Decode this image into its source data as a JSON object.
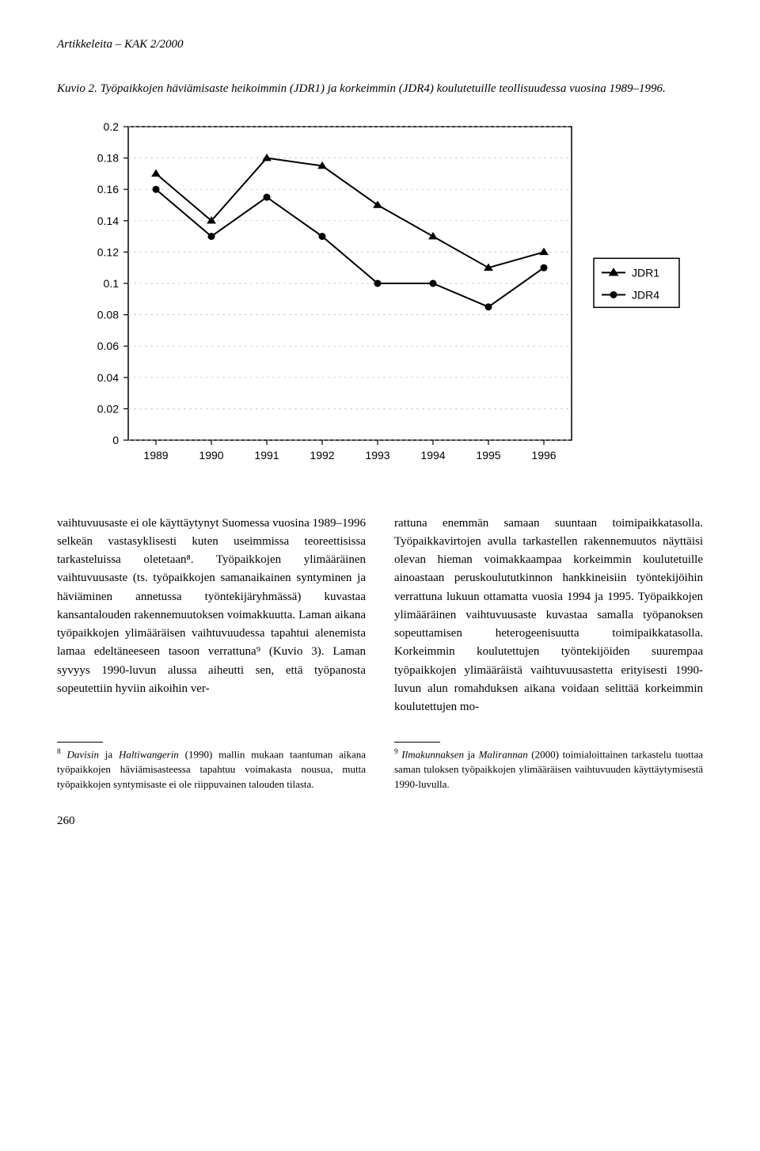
{
  "header": {
    "text": "Artikkeleita – KAK 2/2000"
  },
  "figure": {
    "caption_prefix": "Kuvio 2. ",
    "caption": "Työpaikkojen häviämisaste heikoimmin (JDR1) ja korkeimmin (JDR4) koulutetuille teollisuudessa vuosina 1989–1996."
  },
  "chart": {
    "type": "line",
    "background_color": "#ffffff",
    "grid_color": "#bfbfbf",
    "axis_color": "#000000",
    "tick_fontsize": 14,
    "x_categories": [
      "1989",
      "1990",
      "1991",
      "1992",
      "1993",
      "1994",
      "1995",
      "1996"
    ],
    "y": {
      "min": 0,
      "max": 0.2,
      "tick_step": 0.02,
      "tick_labels": [
        "0",
        "0.02",
        "0.04",
        "0.06",
        "0.08",
        "0.1",
        "0.12",
        "0.14",
        "0.16",
        "0.18",
        "0.2"
      ]
    },
    "series": [
      {
        "name": "JDR1",
        "marker": "triangle",
        "color": "#000000",
        "line_width": 2,
        "marker_size": 10,
        "values": [
          0.17,
          0.14,
          0.18,
          0.175,
          0.15,
          0.13,
          0.11,
          0.12
        ]
      },
      {
        "name": "JDR4",
        "marker": "circle",
        "color": "#000000",
        "line_width": 2,
        "marker_size": 9,
        "values": [
          0.16,
          0.13,
          0.155,
          0.13,
          0.1,
          0.1,
          0.085,
          0.11
        ]
      }
    ],
    "legend": {
      "position": "right",
      "border_color": "#000000",
      "items": [
        {
          "marker": "triangle",
          "label": "JDR1"
        },
        {
          "marker": "circle",
          "label": "JDR4"
        }
      ]
    }
  },
  "body": {
    "left": "vaihtuvuusaste ei ole käyttäytynyt Suomessa vuosina 1989–1996 selkeän vastasyklisesti kuten useimmissa teoreettisissa tarkasteluissa oletetaan⁸. Työpaikkojen ylimääräinen vaihtuvuusaste (ts. työpaikkojen samanaikainen syntyminen ja häviäminen annetussa työntekijäryhmässä) kuvastaa kansantalouden rakennemuutoksen voimakkuutta. Laman aikana työpaikkojen ylimääräisen vaihtuvuudessa tapahtui alenemista lamaa edeltäneeseen tasoon verrattuna⁹ (Kuvio 3). Laman syvyys 1990-luvun alussa aiheutti sen, että työpanosta sopeutettiin hyviin aikoihin ver-",
    "right": "rattuna enemmän samaan suuntaan toimipaikkatasolla. Työpaikkavirtojen avulla tarkastellen rakennemuutos näyttäisi olevan hieman voimakkaampaa korkeimmin koulutetuille ainoastaan peruskoulututkinnon hankkineisiin työntekijöihin verrattuna lukuun ottamatta vuosia 1994 ja 1995. Työpaikkojen ylimääräinen vaihtuvuusaste kuvastaa samalla työpanoksen sopeuttamisen heterogeenisuutta toimipaikkatasolla. Korkeimmin koulutettujen työntekijöiden suurempaa työpaikkojen ylimääräistä vaihtuvuusastetta erityisesti 1990-luvun alun romahduksen aikana voidaan selittää korkeimmin koulutettujen mo-"
  },
  "footnotes": {
    "left": {
      "num": "8",
      "italic1": "Davisin",
      "mid": " ja ",
      "italic2": "Haltiwangerin",
      "rest": " (1990) mallin mukaan taantuman aikana työpaikkojen häviämisasteessa tapahtuu voimakasta nousua, mutta työpaikkojen syntymisaste ei ole riippuvainen talouden tilasta."
    },
    "right": {
      "num": "9",
      "italic1": "Ilmakunnaksen",
      "mid": " ja ",
      "italic2": "Malirannan",
      "rest": " (2000) toimialoittainen tarkastelu tuottaa saman tuloksen työpaikkojen ylimääräisen vaihtuvuuden käyttäytymisestä 1990-luvulla."
    }
  },
  "pagenum": "260"
}
